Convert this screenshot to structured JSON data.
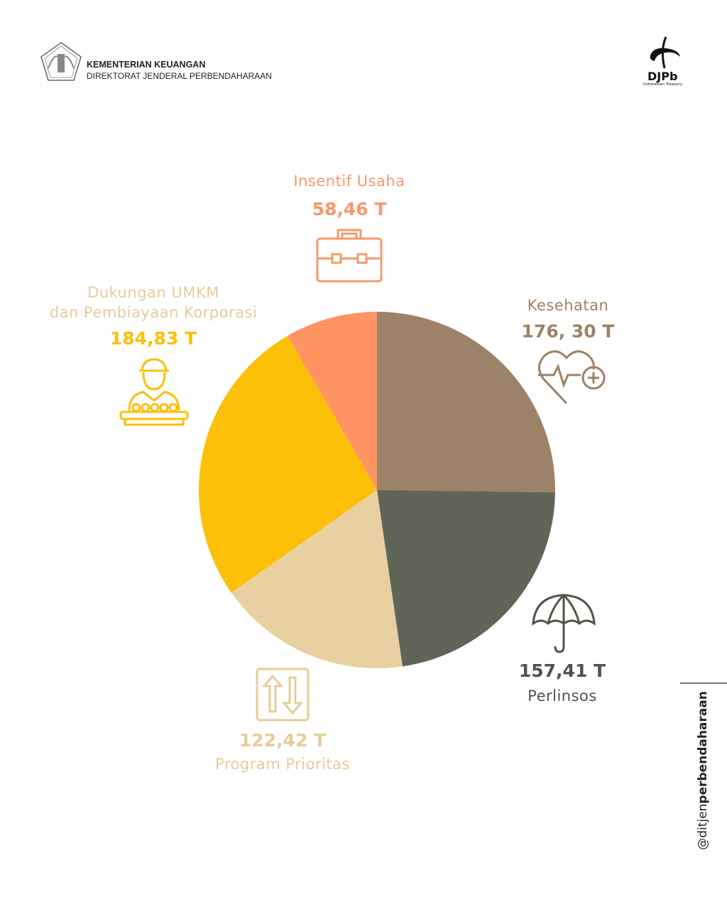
{
  "header": {
    "ministry": "KEMENTERIAN KEUANGAN",
    "directorate": "DIREKTORAT JENDERAL PERBENDAHARAAN",
    "logo_text": "DJPb",
    "logo_subtext": "Indonesian Treasury"
  },
  "social": {
    "handle_prefix": "@ditjen",
    "handle_bold": "perbendaharaan"
  },
  "chart_data": {
    "type": "pie",
    "unit": "T",
    "start_angle_deg": 0,
    "direction": "clockwise",
    "slices": [
      {
        "label": "Kesehatan",
        "value": 176.3,
        "value_text": "176, 30 T",
        "color": "#9C8268",
        "label_color": "#9C8268",
        "icon": "heart-pulse-plus-icon"
      },
      {
        "label": "Perlinsos",
        "value": 157.41,
        "value_text": "157,41 T",
        "color": "#606558",
        "label_color": "#505448",
        "icon": "umbrella-icon"
      },
      {
        "label": "Program Prioritas",
        "value": 122.42,
        "value_text": "122,42 T",
        "color": "#E9D0A0",
        "label_color": "#E6CC9A",
        "icon": "up-down-arrows-icon"
      },
      {
        "label": "Dukungan UMKM dan Pembiayaan Korporasi",
        "label_lines": [
          "Dukungan UMKM",
          "dan Pembiayaan Korporasi"
        ],
        "value": 184.83,
        "value_text": "184,83 T",
        "color": "#FCC008",
        "label_color": "#E6CC9A",
        "value_color": "#FCC008",
        "icon": "vendor-person-icon"
      },
      {
        "label": "Insentif Usaha",
        "value": 58.46,
        "value_text": "58,46 T",
        "color": "#FF9463",
        "label_color": "#F59A6E",
        "icon": "briefcase-icon"
      }
    ]
  }
}
